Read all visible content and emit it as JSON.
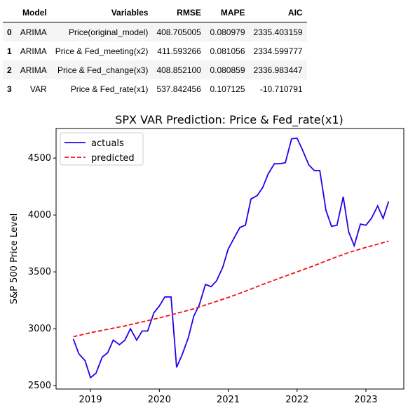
{
  "table": {
    "columns": [
      "",
      "Model",
      "Variables",
      "RMSE",
      "MAPE",
      "AIC"
    ],
    "rows": [
      {
        "index": "0",
        "model": "ARIMA",
        "variables": "Price(original_model)",
        "rmse": "408.705005",
        "mape": "0.080979",
        "aic": "2335.403159"
      },
      {
        "index": "1",
        "model": "ARIMA",
        "variables": "Price & Fed_meeting(x2)",
        "rmse": "411.593266",
        "mape": "0.081056",
        "aic": "2334.599777"
      },
      {
        "index": "2",
        "model": "ARIMA",
        "variables": "Price & Fed_change(x3)",
        "rmse": "408.852100",
        "mape": "0.080859",
        "aic": "2336.983447"
      },
      {
        "index": "3",
        "model": "VAR",
        "variables": "Price & Fed_rate(x1)",
        "rmse": "537.842456",
        "mape": "0.107125",
        "aic": "-10.710791"
      }
    ]
  },
  "chart_data": {
    "type": "line",
    "title": "SPX VAR Prediction: Price & Fed_rate(x1)",
    "xlabel": "",
    "ylabel": "S&P 500 Price Level",
    "xlim": [
      2018.5,
      2023.55
    ],
    "ylim": [
      2470,
      4760
    ],
    "xticks": [
      2019,
      2020,
      2021,
      2022,
      2023
    ],
    "yticks": [
      2500,
      3000,
      3500,
      4000,
      4500
    ],
    "legend": "top-left",
    "series": [
      {
        "name": "actuals",
        "color": "#2200ee",
        "style": "solid",
        "x": [
          2018.75,
          2018.83,
          2018.92,
          2019.0,
          2019.08,
          2019.17,
          2019.25,
          2019.33,
          2019.42,
          2019.5,
          2019.58,
          2019.67,
          2019.75,
          2019.83,
          2019.92,
          2020.0,
          2020.08,
          2020.17,
          2020.25,
          2020.33,
          2020.42,
          2020.5,
          2020.58,
          2020.67,
          2020.75,
          2020.83,
          2020.92,
          2021.0,
          2021.08,
          2021.17,
          2021.25,
          2021.33,
          2021.42,
          2021.5,
          2021.58,
          2021.67,
          2021.75,
          2021.83,
          2021.92,
          2022.0,
          2022.08,
          2022.17,
          2022.25,
          2022.33,
          2022.42,
          2022.5,
          2022.58,
          2022.67,
          2022.75,
          2022.83,
          2022.92,
          2023.0,
          2023.08,
          2023.17,
          2023.25,
          2023.33
        ],
        "values": [
          2910,
          2780,
          2720,
          2570,
          2610,
          2750,
          2790,
          2900,
          2860,
          2900,
          3000,
          2900,
          2980,
          2980,
          3140,
          3200,
          3280,
          3280,
          2660,
          2770,
          2920,
          3110,
          3210,
          3390,
          3370,
          3420,
          3540,
          3700,
          3790,
          3890,
          3910,
          4140,
          4170,
          4240,
          4360,
          4450,
          4450,
          4460,
          4670,
          4675,
          4570,
          4440,
          4390,
          4390,
          4040,
          3900,
          3910,
          4160,
          3850,
          3730,
          3920,
          3910,
          3970,
          4080,
          3970,
          4120
        ]
      },
      {
        "name": "predicted",
        "color": "#ee1111",
        "style": "dashed",
        "x": [
          2018.75,
          2019.0,
          2019.25,
          2019.5,
          2019.75,
          2020.0,
          2020.25,
          2020.5,
          2020.75,
          2021.0,
          2021.25,
          2021.5,
          2021.75,
          2022.0,
          2022.25,
          2022.5,
          2022.75,
          2023.0,
          2023.33
        ],
        "values": [
          2930,
          2965,
          2995,
          3025,
          3060,
          3095,
          3135,
          3175,
          3225,
          3275,
          3330,
          3390,
          3445,
          3500,
          3555,
          3615,
          3670,
          3715,
          3770
        ]
      }
    ]
  }
}
